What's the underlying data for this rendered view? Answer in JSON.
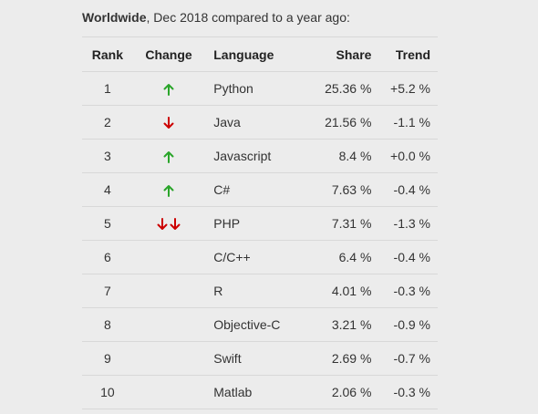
{
  "caption": {
    "bold": "Worldwide",
    "rest": ", Dec 2018 compared to a year ago:"
  },
  "headers": {
    "rank": "Rank",
    "change": "Change",
    "language": "Language",
    "share": "Share",
    "trend": "Trend"
  },
  "colors": {
    "up": "#2aa52a",
    "down": "#cc0000"
  },
  "rows": [
    {
      "rank": "1",
      "change": "up",
      "language": "Python",
      "share": "25.36 %",
      "trend": "+5.2 %"
    },
    {
      "rank": "2",
      "change": "down",
      "language": "Java",
      "share": "21.56 %",
      "trend": "-1.1 %"
    },
    {
      "rank": "3",
      "change": "up",
      "language": "Javascript",
      "share": "8.4 %",
      "trend": "+0.0 %"
    },
    {
      "rank": "4",
      "change": "up",
      "language": "C#",
      "share": "7.63 %",
      "trend": "-0.4 %"
    },
    {
      "rank": "5",
      "change": "double-down",
      "language": "PHP",
      "share": "7.31 %",
      "trend": "-1.3 %"
    },
    {
      "rank": "6",
      "change": "",
      "language": "C/C++",
      "share": "6.4 %",
      "trend": "-0.4 %"
    },
    {
      "rank": "7",
      "change": "",
      "language": "R",
      "share": "4.01 %",
      "trend": "-0.3 %"
    },
    {
      "rank": "8",
      "change": "",
      "language": "Objective-C",
      "share": "3.21 %",
      "trend": "-0.9 %"
    },
    {
      "rank": "9",
      "change": "",
      "language": "Swift",
      "share": "2.69 %",
      "trend": "-0.7 %"
    },
    {
      "rank": "10",
      "change": "",
      "language": "Matlab",
      "share": "2.06 %",
      "trend": "-0.3 %"
    }
  ]
}
